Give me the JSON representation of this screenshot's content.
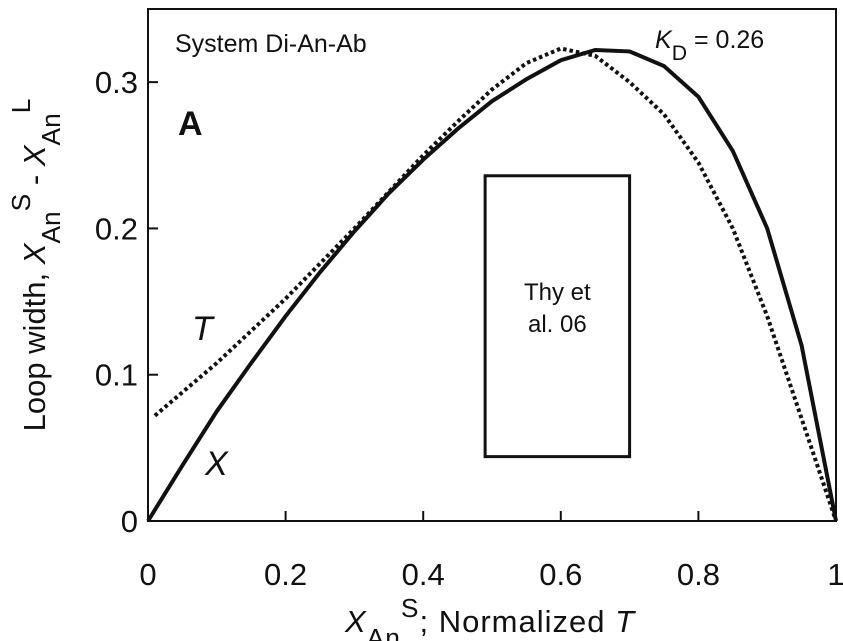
{
  "chart_data": {
    "type": "line",
    "annotations": [
      "System Di-An-Ab",
      "A"
    ],
    "kd_label": [
      {
        "text": "K",
        "style": "italic"
      },
      {
        "text": "D",
        "style": "sub"
      },
      {
        "text": " = 0.26",
        "style": "normal"
      }
    ],
    "y_label": [
      {
        "text": "Loop width, ",
        "style": "normal"
      },
      {
        "text": "X",
        "style": "italic"
      },
      {
        "text": "An",
        "style": "sub"
      },
      {
        "text": "S",
        "style": "sup"
      },
      {
        "text": " - ",
        "style": "normal"
      },
      {
        "text": "X",
        "style": "italic"
      },
      {
        "text": "An",
        "style": "sub"
      },
      {
        "text": "L",
        "style": "sup"
      }
    ],
    "x_label": [
      {
        "text": "X",
        "style": "italic"
      },
      {
        "text": "An",
        "style": "sub"
      },
      {
        "text": "S",
        "style": "sup"
      },
      {
        "text": "; Normalized ",
        "style": "normal"
      },
      {
        "text": "T",
        "style": "italic"
      }
    ],
    "xlim": [
      0,
      1
    ],
    "ylim": [
      0,
      0.35
    ],
    "xticks": [
      0,
      0.2,
      0.4,
      0.6,
      0.8,
      1
    ],
    "yticks": [
      0,
      0.1,
      0.2,
      0.3
    ],
    "series": [
      {
        "name": "X",
        "color": "#111111",
        "dash": "solid",
        "x": [
          0,
          0.05,
          0.1,
          0.15,
          0.2,
          0.25,
          0.3,
          0.35,
          0.4,
          0.45,
          0.5,
          0.55,
          0.6,
          0.65,
          0.7,
          0.75,
          0.8,
          0.85,
          0.9,
          0.95,
          1
        ],
        "values": [
          0,
          0.038,
          0.075,
          0.108,
          0.14,
          0.17,
          0.198,
          0.224,
          0.247,
          0.268,
          0.287,
          0.302,
          0.315,
          0.322,
          0.321,
          0.311,
          0.29,
          0.253,
          0.2,
          0.12,
          0
        ]
      },
      {
        "name": "T",
        "color": "#111111",
        "dash": "dotted",
        "x": [
          0.01,
          0.05,
          0.1,
          0.15,
          0.2,
          0.25,
          0.3,
          0.35,
          0.4,
          0.45,
          0.5,
          0.55,
          0.6,
          0.65,
          0.7,
          0.75,
          0.8,
          0.85,
          0.9,
          0.95,
          1
        ],
        "values": [
          0.072,
          0.088,
          0.108,
          0.13,
          0.152,
          0.176,
          0.2,
          0.225,
          0.25,
          0.273,
          0.295,
          0.313,
          0.323,
          0.318,
          0.3,
          0.278,
          0.245,
          0.2,
          0.14,
          0.07,
          0
        ]
      }
    ],
    "box": {
      "label": [
        "Thy et",
        "al. 06"
      ],
      "x": [
        0.49,
        0.7
      ],
      "y": [
        0.044,
        0.236
      ]
    }
  }
}
